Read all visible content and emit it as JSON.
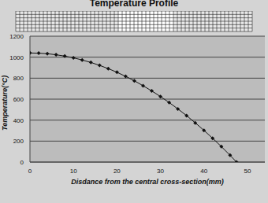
{
  "chart_data": {
    "type": "line",
    "title": "Temperature Profile",
    "xlabel": "Disdance from the central cross-section(mm)",
    "ylabel": "Temperature(°C)",
    "x": [
      0,
      2,
      4,
      6,
      8,
      10,
      12,
      14,
      16,
      18,
      20,
      22,
      24,
      26,
      28,
      30,
      32,
      34,
      36,
      38,
      40,
      42,
      44,
      46,
      47.5
    ],
    "values": [
      1040,
      1038,
      1033,
      1023,
      1010,
      994,
      973,
      950,
      922,
      891,
      856,
      817,
      775,
      728,
      678,
      625,
      568,
      507,
      443,
      374,
      302,
      227,
      148,
      65,
      0
    ],
    "color": "#111111",
    "marker": "diamond",
    "xlim": [
      0,
      54
    ],
    "ylim": [
      0,
      1200
    ],
    "xticks": [
      0,
      10,
      20,
      30,
      40,
      50
    ],
    "yticks": [
      0,
      200,
      400,
      600,
      800,
      1000,
      1200
    ],
    "grid": true
  }
}
